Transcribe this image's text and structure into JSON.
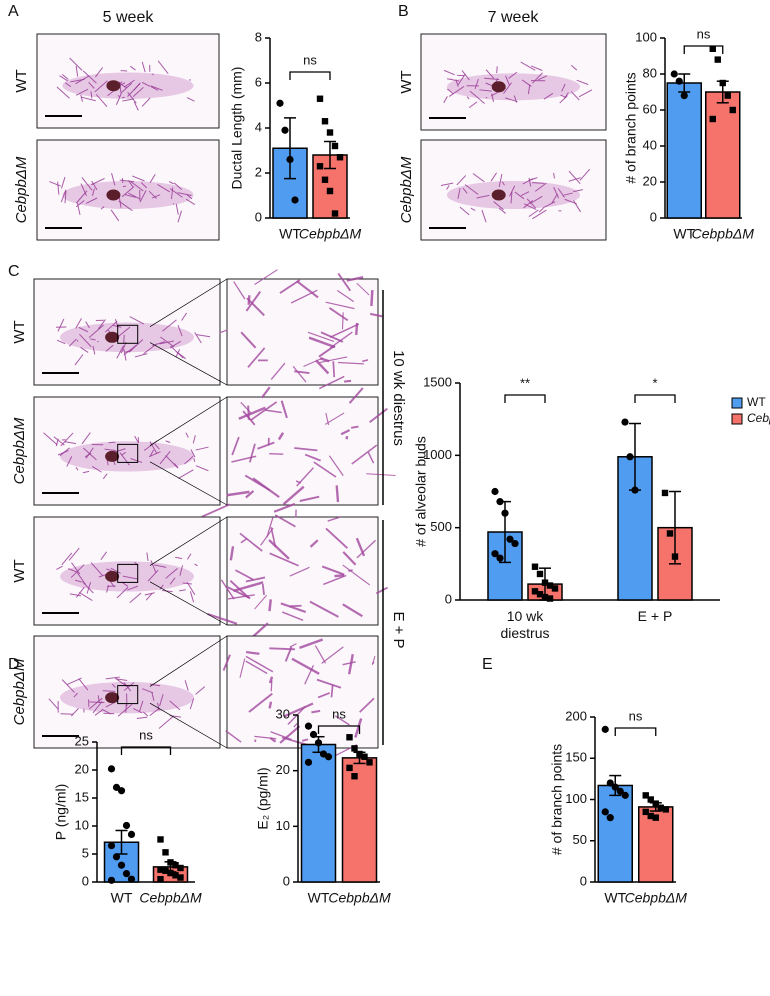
{
  "figure": {
    "panels": [
      "A",
      "B",
      "C",
      "D",
      "E"
    ],
    "ages": [
      "5 week",
      "7 week"
    ],
    "image_labels_a": [
      "WT",
      "CebpbΔM"
    ],
    "image_labels_b": [
      "WT",
      "CebpbΔM"
    ],
    "image_labels_c": [
      "WT",
      "CebpbΔM",
      "WT",
      "CebpbΔM"
    ],
    "conditions": [
      "10 wk diestrus",
      "E + P"
    ]
  },
  "chart_data": [
    {
      "type": "bar",
      "y_label": "Ductal Length (mm)",
      "categories": [
        "WT",
        "CebpbΔM"
      ],
      "values": [
        3.1,
        2.8
      ],
      "errors": [
        1.35,
        0.6
      ],
      "colors": [
        "#4f9cf0",
        "#f5736b"
      ],
      "points": [
        [
          5.1,
          3.9,
          2.6,
          0.8
        ],
        [
          5.3,
          4.3,
          3.8,
          3.2,
          2.7,
          2.3,
          1.7,
          1.2,
          0.2
        ]
      ],
      "ylim": [
        0,
        8
      ],
      "yticks": [
        0,
        2,
        4,
        6,
        8
      ],
      "significance": "ns"
    },
    {
      "type": "bar",
      "y_label": "# of branch points",
      "categories": [
        "WT",
        "CebpbΔM"
      ],
      "values": [
        75,
        70
      ],
      "errors": [
        5,
        6
      ],
      "colors": [
        "#4f9cf0",
        "#f5736b"
      ],
      "points": [
        [
          80,
          76,
          68
        ],
        [
          94,
          88,
          75,
          68,
          60,
          55
        ]
      ],
      "ylim": [
        0,
        100
      ],
      "yticks": [
        0,
        20,
        40,
        60,
        80,
        100
      ],
      "significance": "ns"
    },
    {
      "type": "grouped",
      "y_label": "# of alveolar buds",
      "categories": [
        "10 wk\ndiestrus",
        "E + P"
      ],
      "series": [
        {
          "name": "WT",
          "color": "#4f9cf0",
          "values": [
            470,
            990
          ],
          "errors": [
            210,
            230
          ],
          "points": [
            [
              750,
              680,
              600,
              420,
              390,
              320,
              290
            ],
            [
              1230,
              990,
              760
            ]
          ]
        },
        {
          "name": "CebpbΔM",
          "color": "#f5736b",
          "values": [
            110,
            500
          ],
          "errors": [
            110,
            250
          ],
          "points": [
            [
              230,
              180,
              120,
              100,
              80,
              60,
              40,
              20,
              10
            ],
            [
              740,
              460,
              300
            ]
          ]
        }
      ],
      "ylim": [
        0,
        1500
      ],
      "yticks": [
        0,
        500,
        1000,
        1500
      ],
      "significance": [
        "**",
        "*"
      ],
      "legend": "top-right"
    },
    {
      "type": "bar",
      "y_label": "P (ng/ml)",
      "categories": [
        "WT",
        "CebpbΔM"
      ],
      "values": [
        7.1,
        2.7
      ],
      "errors": [
        2.1,
        0.9
      ],
      "colors": [
        "#4f9cf0",
        "#f5736b"
      ],
      "points": [
        [
          20.2,
          16.9,
          16.3,
          10.1,
          8.5,
          6.5,
          4.5,
          3.0,
          1.5,
          0.5,
          0.3
        ],
        [
          7.6,
          5.3,
          3.5,
          3.0,
          2.5,
          2.2,
          2.0,
          1.6,
          1.2,
          0.8,
          0.5
        ]
      ],
      "ylim": [
        0,
        25
      ],
      "yticks": [
        0,
        5,
        10,
        15,
        20,
        25
      ],
      "significance": "ns"
    },
    {
      "type": "bar",
      "y_label": "E₂ (pg/ml)",
      "categories": [
        "WT",
        "CebpbΔM"
      ],
      "values": [
        24.7,
        22.3
      ],
      "errors": [
        1.4,
        1.0
      ],
      "colors": [
        "#4f9cf0",
        "#f5736b"
      ],
      "points": [
        [
          28,
          26.5,
          25,
          23,
          22.5,
          21.5
        ],
        [
          26,
          24,
          23,
          22.5,
          21.5,
          20.5,
          19
        ]
      ],
      "ylim": [
        0,
        30
      ],
      "yticks": [
        0,
        10,
        20,
        30
      ],
      "significance": "ns"
    },
    {
      "type": "bar",
      "y_label": "# of branch points",
      "categories": [
        "WT",
        "CebpbΔM"
      ],
      "values": [
        117,
        91
      ],
      "errors": [
        12,
        5
      ],
      "colors": [
        "#4f9cf0",
        "#f5736b"
      ],
      "points": [
        [
          185,
          120,
          115,
          110,
          105,
          85,
          78
        ],
        [
          105,
          100,
          95,
          90,
          88,
          85,
          80,
          78
        ]
      ],
      "ylim": [
        0,
        200
      ],
      "yticks": [
        0,
        50,
        100,
        150,
        200
      ],
      "significance": "ns"
    }
  ]
}
